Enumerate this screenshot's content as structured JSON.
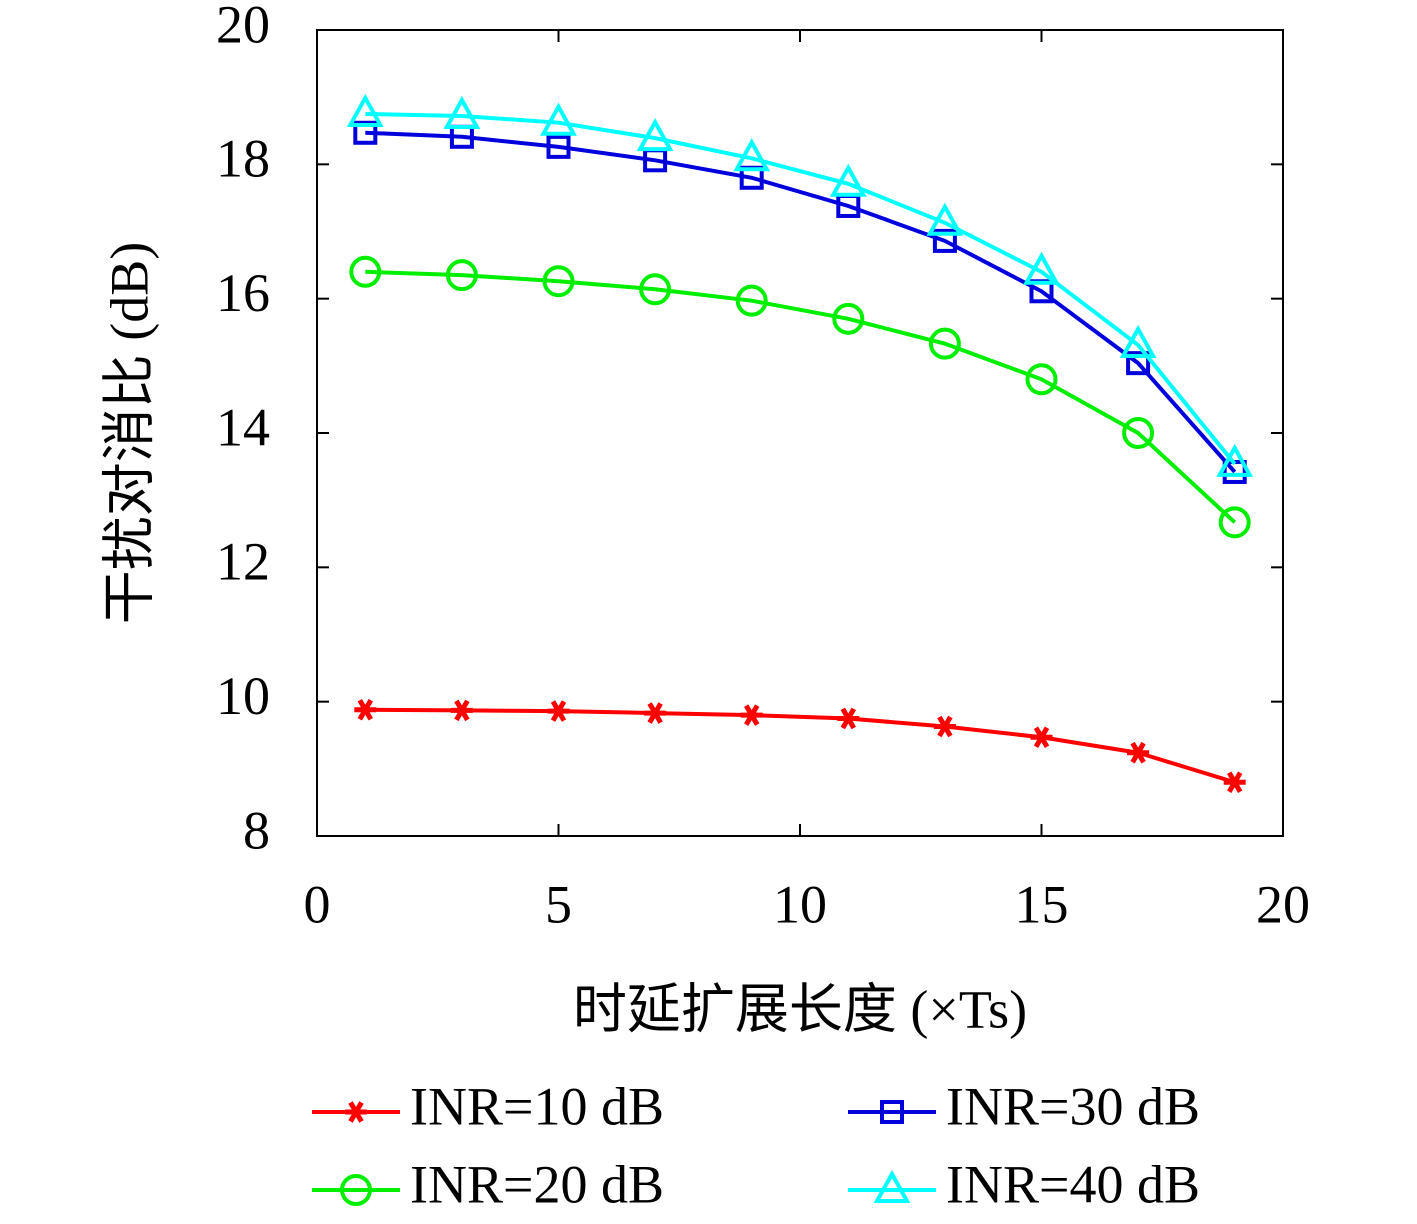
{
  "chart_data": {
    "type": "line",
    "xlabel": "时延扩展长度 (×Ts)",
    "ylabel": "干扰对消比 (dB)",
    "x": [
      1,
      3,
      5,
      7,
      9,
      11,
      13,
      15,
      17,
      19
    ],
    "series": [
      {
        "name": "INR=10 dB",
        "color": "#ff0000",
        "marker": "star",
        "values": [
          9.88,
          9.87,
          9.86,
          9.83,
          9.8,
          9.75,
          9.63,
          9.47,
          9.24,
          8.8
        ]
      },
      {
        "name": "INR=20 dB",
        "color": "#00ee00",
        "marker": "circle",
        "values": [
          16.4,
          16.35,
          16.26,
          16.14,
          15.97,
          15.7,
          15.33,
          14.8,
          14.0,
          12.67
        ]
      },
      {
        "name": "INR=30 dB",
        "color": "#0000dd",
        "marker": "square",
        "values": [
          18.47,
          18.41,
          18.26,
          18.06,
          17.8,
          17.38,
          16.86,
          16.11,
          15.04,
          13.42
        ]
      },
      {
        "name": "INR=40 dB",
        "color": "#00ffff",
        "marker": "triangle",
        "values": [
          18.75,
          18.72,
          18.62,
          18.39,
          18.09,
          17.71,
          17.13,
          16.4,
          15.31,
          13.54
        ]
      }
    ],
    "xlim": [
      0,
      20
    ],
    "xticks": [
      0,
      5,
      10,
      15,
      20
    ],
    "ylim": [
      8,
      20
    ],
    "yticks": [
      8,
      10,
      12,
      14,
      16,
      18,
      20
    ]
  }
}
